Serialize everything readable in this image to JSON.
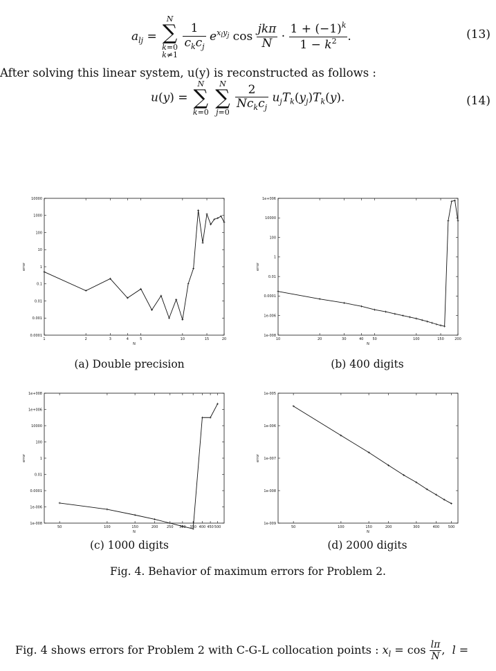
{
  "equation_13": {
    "number": "(13)"
  },
  "paragraph_1": "After solving this linear system, u(y) is reconstructed as follows :",
  "equation_14": {
    "number": "(14)"
  },
  "figure_caption": "Fig. 4. Behavior of maximum errors for Problem 2.",
  "bottom_text": "Fig. 4 shows errors for Problem 2 with C-G-L collocation points :",
  "chart_data": [
    {
      "type": "line",
      "caption": "(a) Double precision",
      "xlabel": "N",
      "ylabel": "error",
      "xscale": "log",
      "yscale": "log",
      "xlim": [
        1,
        20
      ],
      "ylim": [
        0.0001,
        10000
      ],
      "xticks": [
        {
          "v": 1,
          "label": "1"
        },
        {
          "v": 2,
          "label": "2"
        },
        {
          "v": 3,
          "label": "3"
        },
        {
          "v": 4,
          "label": "4"
        },
        {
          "v": 5,
          "label": "5"
        },
        {
          "v": 10,
          "label": "10"
        },
        {
          "v": 15,
          "label": "15"
        },
        {
          "v": 20,
          "label": "20"
        }
      ],
      "yticks": [
        {
          "v": 0.0001,
          "label": "0.0001"
        },
        {
          "v": 0.001,
          "label": "0.001"
        },
        {
          "v": 0.01,
          "label": "0.01"
        },
        {
          "v": 0.1,
          "label": "0.1"
        },
        {
          "v": 1,
          "label": "1"
        },
        {
          "v": 10,
          "label": "10"
        },
        {
          "v": 100,
          "label": "100"
        },
        {
          "v": 1000,
          "label": "1000"
        },
        {
          "v": 10000,
          "label": "10000"
        }
      ],
      "x": [
        1,
        2,
        3,
        4,
        5,
        6,
        7,
        8,
        9,
        10,
        11,
        12,
        13,
        14,
        15,
        16,
        17,
        18,
        19,
        20
      ],
      "y": [
        0.5,
        0.04,
        0.2,
        0.015,
        0.05,
        0.003,
        0.02,
        0.001,
        0.012,
        0.0008,
        0.1,
        0.8,
        2000,
        25,
        1200,
        300,
        600,
        700,
        900,
        400
      ]
    },
    {
      "type": "line",
      "caption": "(b) 400 digits",
      "xlabel": "N",
      "ylabel": "error",
      "xscale": "log",
      "yscale": "log",
      "xlim": [
        10,
        200
      ],
      "ylim": [
        1e-08,
        1000000.0
      ],
      "xticks": [
        {
          "v": 10,
          "label": "10"
        },
        {
          "v": 20,
          "label": "20"
        },
        {
          "v": 30,
          "label": "30"
        },
        {
          "v": 40,
          "label": "40"
        },
        {
          "v": 50,
          "label": "50"
        },
        {
          "v": 100,
          "label": "100"
        },
        {
          "v": 150,
          "label": "150"
        },
        {
          "v": 200,
          "label": "200"
        }
      ],
      "yticks": [
        {
          "v": 1e-08,
          "label": "1e-008"
        },
        {
          "v": 1e-06,
          "label": "1e-006"
        },
        {
          "v": 0.0001,
          "label": "0.0001"
        },
        {
          "v": 0.01,
          "label": "0.01"
        },
        {
          "v": 1,
          "label": "1"
        },
        {
          "v": 100,
          "label": "100"
        },
        {
          "v": 10000,
          "label": "10000"
        },
        {
          "v": 1000000.0,
          "label": "1e+006"
        }
      ],
      "x": [
        10,
        20,
        30,
        40,
        50,
        60,
        70,
        80,
        90,
        100,
        110,
        120,
        130,
        140,
        150,
        160,
        170,
        180,
        190,
        200
      ],
      "y": [
        0.0003,
        5e-05,
        2e-05,
        9e-06,
        4e-06,
        2.5e-06,
        1.5e-06,
        1e-06,
        7e-07,
        5e-07,
        3.5e-07,
        2.5e-07,
        1.8e-07,
        1.3e-07,
        1e-07,
        8e-08,
        5000,
        500000,
        600000,
        5000
      ]
    },
    {
      "type": "line",
      "caption": "(c) 1000 digits",
      "xlabel": "N",
      "ylabel": "error",
      "xscale": "log",
      "yscale": "log",
      "xlim": [
        40,
        550
      ],
      "ylim": [
        1e-08,
        100000000.0
      ],
      "xticks": [
        {
          "v": 50,
          "label": "50"
        },
        {
          "v": 100,
          "label": "100"
        },
        {
          "v": 150,
          "label": "150"
        },
        {
          "v": 200,
          "label": "200"
        },
        {
          "v": 250,
          "label": "250"
        },
        {
          "v": 300,
          "label": "300"
        },
        {
          "v": 350,
          "label": "350"
        },
        {
          "v": 400,
          "label": "400"
        },
        {
          "v": 450,
          "label": "450"
        },
        {
          "v": 500,
          "label": "500"
        }
      ],
      "yticks": [
        {
          "v": 1e-08,
          "label": "1e-008"
        },
        {
          "v": 1e-06,
          "label": "1e-006"
        },
        {
          "v": 0.0001,
          "label": "0.0001"
        },
        {
          "v": 0.01,
          "label": "0.01"
        },
        {
          "v": 1,
          "label": "1"
        },
        {
          "v": 100,
          "label": "100"
        },
        {
          "v": 10000,
          "label": "10000"
        },
        {
          "v": 1000000.0,
          "label": "1e+006"
        },
        {
          "v": 100000000.0,
          "label": "1e+008"
        }
      ],
      "x": [
        50,
        100,
        150,
        200,
        250,
        300,
        350,
        400,
        450,
        500
      ],
      "y": [
        3e-06,
        5e-07,
        1e-07,
        3e-08,
        1e-08,
        4e-09,
        2e-09,
        100000,
        100000,
        5000000
      ]
    },
    {
      "type": "line",
      "caption": "(d) 2000 digits",
      "xlabel": "N",
      "ylabel": "error",
      "xscale": "log",
      "yscale": "log",
      "xlim": [
        40,
        550
      ],
      "ylim": [
        1e-09,
        1e-05
      ],
      "xticks": [
        {
          "v": 50,
          "label": "50"
        },
        {
          "v": 100,
          "label": "100"
        },
        {
          "v": 150,
          "label": "150"
        },
        {
          "v": 200,
          "label": "200"
        },
        {
          "v": 300,
          "label": "300"
        },
        {
          "v": 400,
          "label": "400"
        },
        {
          "v": 500,
          "label": "500"
        }
      ],
      "yticks": [
        {
          "v": 1e-09,
          "label": "1e-009"
        },
        {
          "v": 1e-08,
          "label": "1e-008"
        },
        {
          "v": 1e-07,
          "label": "1e-007"
        },
        {
          "v": 1e-06,
          "label": "1e-006"
        },
        {
          "v": 1e-05,
          "label": "1e-005"
        }
      ],
      "x": [
        50,
        100,
        150,
        200,
        250,
        300,
        350,
        400,
        450,
        500
      ],
      "y": [
        4e-06,
        5e-07,
        1.5e-07,
        6e-08,
        3e-08,
        1.8e-08,
        1.1e-08,
        7.5e-09,
        5.3e-09,
        4e-09
      ]
    }
  ]
}
